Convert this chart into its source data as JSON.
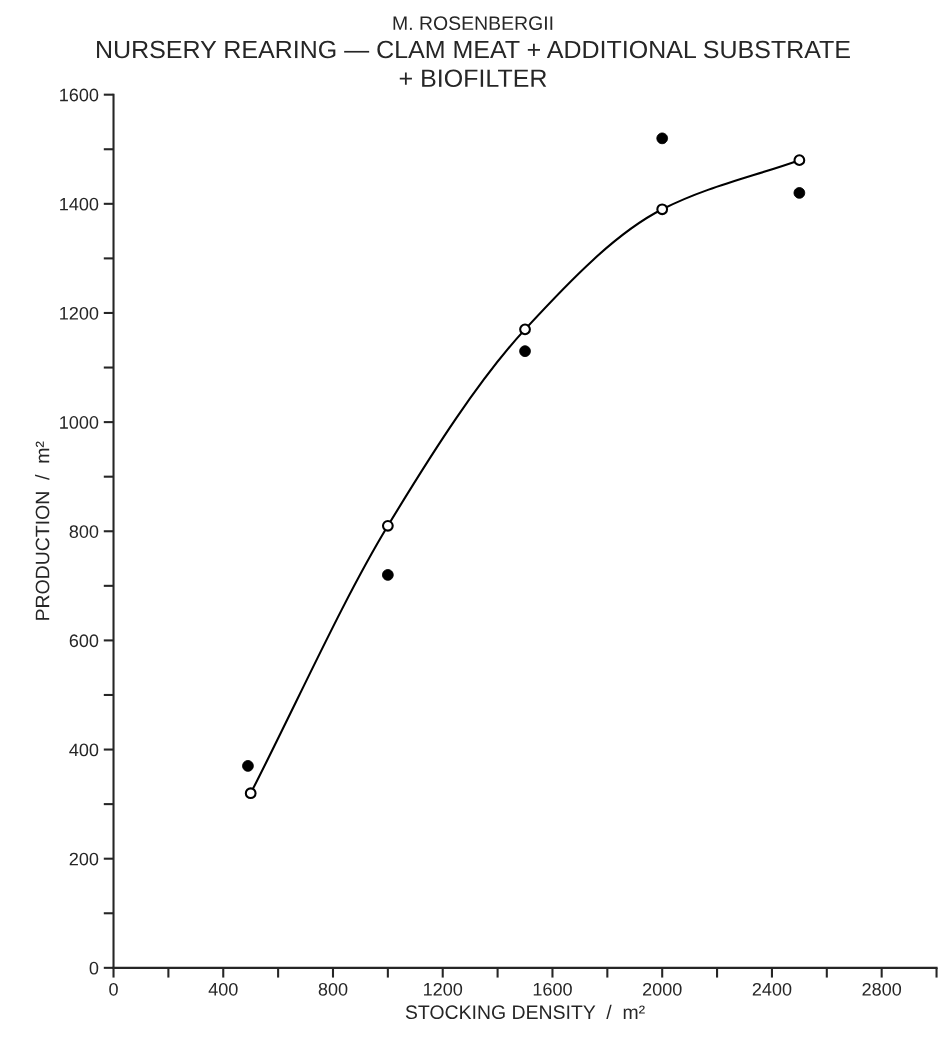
{
  "chart_data": {
    "type": "scatter",
    "subtitle": "M. ROSENBERGII",
    "title": "NURSERY REARING — CLAM MEAT + ADDITIONAL SUBSTRATE\n+ BIOFILTER",
    "xlabel": "STOCKING DENSITY  /  m²",
    "ylabel": "PRODUCTION  /  m²",
    "series": [
      {
        "type": "line",
        "marker": "circle",
        "color": "#000000",
        "x": [
          500,
          1000,
          1500,
          2000,
          2500
        ],
        "values": [
          320,
          810,
          1170,
          1390,
          1480
        ]
      },
      {
        "marker": "circle",
        "color": "#000000",
        "x": [
          490,
          1000,
          1500,
          2000,
          2500
        ],
        "values": [
          370,
          720,
          1130,
          1520,
          1420
        ]
      }
    ],
    "xlim": [
      0,
      3000
    ],
    "ylim": [
      0,
      1600
    ],
    "xticks": [
      0,
      {
        "value": 200,
        "label": null
      },
      400,
      {
        "value": 600,
        "label": null
      },
      800,
      {
        "value": 1000,
        "label": null
      },
      1200,
      {
        "value": 1400,
        "label": null
      },
      1600,
      {
        "value": 1800,
        "label": null
      },
      2000,
      {
        "value": 2200,
        "label": null
      },
      2400,
      {
        "value": 2600,
        "label": null
      },
      2800,
      {
        "value": 3000,
        "label": null
      }
    ],
    "yticks": [
      0,
      {
        "value": 100,
        "label": null
      },
      200,
      {
        "value": 300,
        "label": null
      },
      400,
      {
        "value": 500,
        "label": null
      },
      600,
      {
        "value": 700,
        "label": null
      },
      800,
      {
        "value": 900,
        "label": null
      },
      1000,
      {
        "value": 1100,
        "label": null
      },
      1200,
      {
        "value": 1300,
        "label": null
      },
      1400,
      {
        "value": 1500,
        "label": null
      },
      1600
    ],
    "grid": false,
    "legend": false
  }
}
